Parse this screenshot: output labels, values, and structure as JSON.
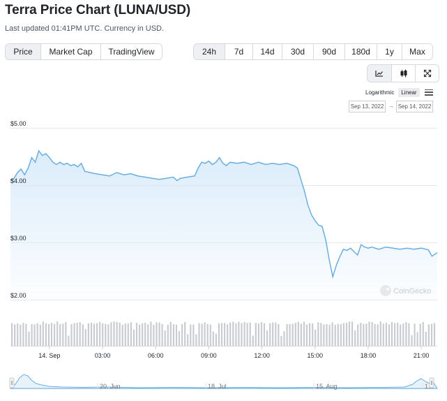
{
  "header": {
    "title": "Terra Price Chart (LUNA/USD)",
    "subtitle": "Last updated 01:41PM UTC. Currency in USD."
  },
  "view_tabs": [
    {
      "label": "Price",
      "active": true
    },
    {
      "label": "Market Cap",
      "active": false
    },
    {
      "label": "TradingView",
      "active": false
    }
  ],
  "range_tabs": [
    {
      "label": "24h",
      "active": true
    },
    {
      "label": "7d",
      "active": false
    },
    {
      "label": "14d",
      "active": false
    },
    {
      "label": "30d",
      "active": false
    },
    {
      "label": "90d",
      "active": false
    },
    {
      "label": "180d",
      "active": false
    },
    {
      "label": "1y",
      "active": false
    },
    {
      "label": "Max",
      "active": false
    }
  ],
  "tools": {
    "icons": [
      "line-chart-icon",
      "candlestick-icon",
      "fullscreen-icon"
    ]
  },
  "scale": {
    "log_label": "Logarithmic",
    "linear_label": "Linear",
    "active": "Linear"
  },
  "date_range": {
    "from": "Sep 13, 2022",
    "arrow": "→",
    "to": "Sep 14, 2022"
  },
  "watermark": "CoinGecko",
  "colors": {
    "line": "#6aaee0",
    "area_top": "#d9ebfa",
    "volume": "#c8ccd1",
    "accent_bg": "#eef0f3"
  },
  "chart_data": {
    "type": "line",
    "title": "",
    "xlabel": "",
    "ylabel": "",
    "ylim": [
      2.0,
      5.0
    ],
    "y_ticks": [
      "$5.00",
      "$4.00",
      "$3.00",
      "$2.00"
    ],
    "y_tick_values": [
      5.0,
      4.0,
      3.0,
      2.0
    ],
    "x_ticks": [
      "14. Sep",
      "03:00",
      "06:00",
      "09:00",
      "12:00",
      "15:00",
      "18:00",
      "21:00"
    ],
    "x_tick_hours": [
      0,
      3,
      6,
      9,
      12,
      15,
      18,
      21
    ],
    "x_range_hours": [
      -2.2,
      21.9
    ],
    "series": [
      {
        "points": [
          [
            -2.2,
            4.08
          ],
          [
            -2.0,
            4.12
          ],
          [
            -1.8,
            4.22
          ],
          [
            -1.6,
            4.28
          ],
          [
            -1.4,
            4.18
          ],
          [
            -1.2,
            4.3
          ],
          [
            -1.0,
            4.48
          ],
          [
            -0.8,
            4.4
          ],
          [
            -0.6,
            4.6
          ],
          [
            -0.4,
            4.52
          ],
          [
            -0.2,
            4.55
          ],
          [
            0.0,
            4.48
          ],
          [
            0.2,
            4.4
          ],
          [
            0.4,
            4.36
          ],
          [
            0.6,
            4.4
          ],
          [
            0.8,
            4.36
          ],
          [
            1.0,
            4.38
          ],
          [
            1.2,
            4.34
          ],
          [
            1.4,
            4.36
          ],
          [
            1.6,
            4.32
          ],
          [
            1.8,
            4.38
          ],
          [
            2.0,
            4.24
          ],
          [
            2.3,
            4.22
          ],
          [
            2.6,
            4.2
          ],
          [
            3.0,
            4.18
          ],
          [
            3.4,
            4.16
          ],
          [
            3.8,
            4.22
          ],
          [
            4.2,
            4.18
          ],
          [
            4.6,
            4.2
          ],
          [
            5.0,
            4.16
          ],
          [
            5.4,
            4.14
          ],
          [
            5.8,
            4.12
          ],
          [
            6.2,
            4.1
          ],
          [
            6.6,
            4.12
          ],
          [
            7.0,
            4.14
          ],
          [
            7.2,
            4.08
          ],
          [
            7.4,
            4.12
          ],
          [
            7.8,
            4.14
          ],
          [
            8.2,
            4.16
          ],
          [
            8.4,
            4.3
          ],
          [
            8.6,
            4.4
          ],
          [
            8.8,
            4.38
          ],
          [
            9.0,
            4.42
          ],
          [
            9.2,
            4.36
          ],
          [
            9.4,
            4.4
          ],
          [
            9.6,
            4.48
          ],
          [
            9.8,
            4.38
          ],
          [
            10.0,
            4.34
          ],
          [
            10.2,
            4.4
          ],
          [
            10.6,
            4.38
          ],
          [
            11.0,
            4.4
          ],
          [
            11.4,
            4.36
          ],
          [
            11.8,
            4.4
          ],
          [
            12.2,
            4.36
          ],
          [
            12.6,
            4.38
          ],
          [
            13.0,
            4.36
          ],
          [
            13.4,
            4.38
          ],
          [
            13.8,
            4.34
          ],
          [
            14.0,
            4.3
          ],
          [
            14.2,
            4.1
          ],
          [
            14.4,
            3.9
          ],
          [
            14.6,
            3.65
          ],
          [
            14.8,
            3.48
          ],
          [
            15.0,
            3.38
          ],
          [
            15.2,
            3.3
          ],
          [
            15.4,
            3.28
          ],
          [
            15.6,
            3.05
          ],
          [
            15.8,
            2.7
          ],
          [
            16.0,
            2.4
          ],
          [
            16.2,
            2.6
          ],
          [
            16.4,
            2.75
          ],
          [
            16.6,
            2.88
          ],
          [
            16.8,
            2.86
          ],
          [
            17.0,
            2.9
          ],
          [
            17.2,
            2.84
          ],
          [
            17.4,
            2.78
          ],
          [
            17.6,
            2.96
          ],
          [
            17.8,
            2.92
          ],
          [
            18.0,
            2.9
          ],
          [
            18.2,
            2.92
          ],
          [
            18.6,
            2.88
          ],
          [
            19.0,
            2.92
          ],
          [
            19.4,
            2.9
          ],
          [
            19.8,
            2.88
          ],
          [
            20.2,
            2.9
          ],
          [
            20.6,
            2.88
          ],
          [
            21.0,
            2.9
          ],
          [
            21.4,
            2.87
          ],
          [
            21.6,
            2.76
          ],
          [
            21.9,
            2.82
          ]
        ]
      }
    ],
    "navigator_ticks": [
      "20. Jun",
      "18. Jul",
      "15. Aug",
      "1..."
    ]
  }
}
